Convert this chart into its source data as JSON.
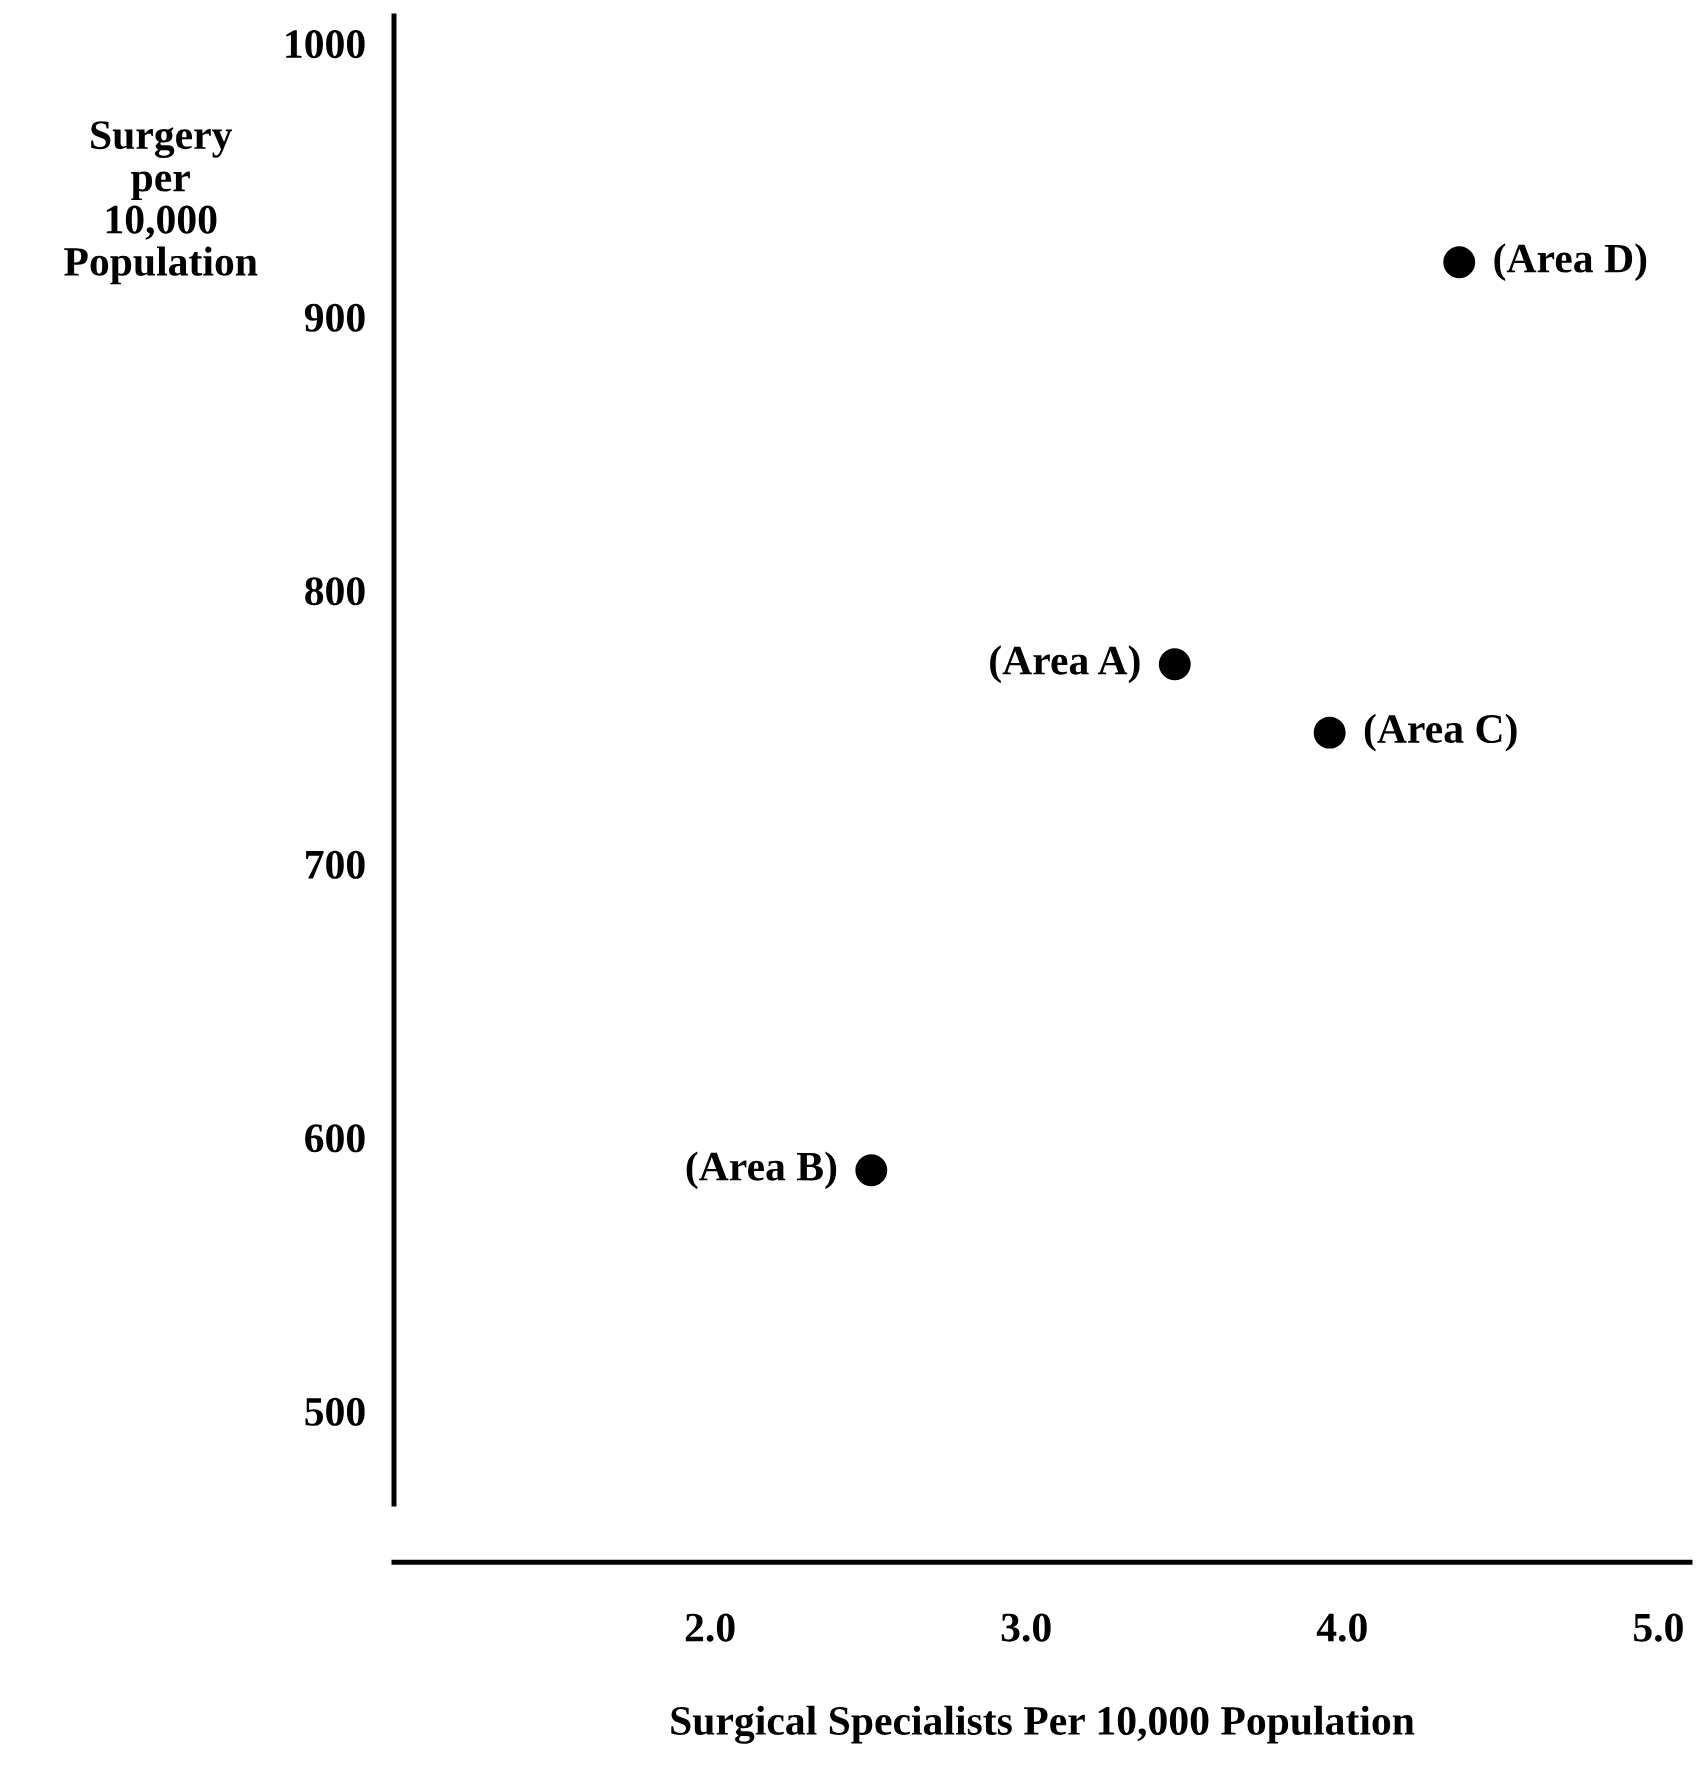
{
  "chart_data": {
    "type": "scatter",
    "xlabel": "Surgical Specialists Per 10,000 Population",
    "ylabel": "Surgery\nper\n10,000\nPopulation",
    "x": [
      3.47,
      2.51,
      3.96,
      4.37
    ],
    "series": [
      {
        "color": "#000000",
        "values": [
          773,
          588,
          748,
          920
        ]
      }
    ],
    "marker": "circle",
    "xlim": [
      1.0,
      5.1
    ],
    "xticks": [
      {
        "value": 2,
        "label": "2.0"
      },
      {
        "value": 3,
        "label": "3.0"
      },
      {
        "value": 4,
        "label": "4.0"
      },
      {
        "value": 5,
        "label": "5.0"
      }
    ],
    "ylim": [
      466,
      1010
    ],
    "yticks": [
      500,
      600,
      700,
      800,
      900,
      1000
    ],
    "grid": false,
    "legend": false,
    "annotations": [
      {
        "text": "(Area A)",
        "x": 3.47,
        "y": 773
      },
      {
        "text": "(Area B)",
        "x": 2.51,
        "y": 588
      },
      {
        "text": "(Area C)",
        "x": 3.96,
        "y": 748
      },
      {
        "text": "(Area D)",
        "x": 4.37,
        "y": 920
      }
    ]
  }
}
